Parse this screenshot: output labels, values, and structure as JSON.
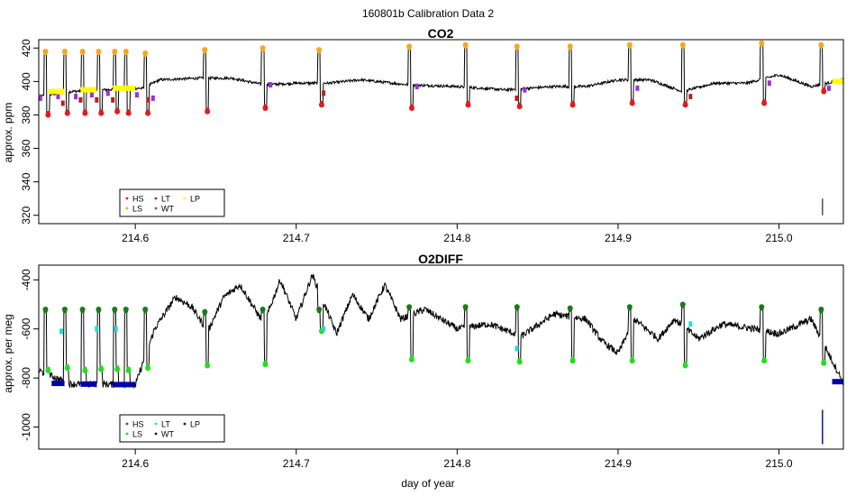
{
  "figure": {
    "suptitle": "160801b   Calibration Data 2",
    "xlabel": "day of year"
  },
  "colors": {
    "HS": "#e31a1c",
    "LS": "#f5a623",
    "LT": "#b22222",
    "WT": "#9b30d9",
    "LP": "#ffff00",
    "O2_HS": "#1a7a1a",
    "O2_LS": "#22dd22",
    "O2_LT": "#22dddd",
    "O2_WT": "#1a1a1a",
    "O2_LP": "#0000aa",
    "trace": "#000000"
  },
  "chart_data": [
    {
      "type": "line",
      "title": "CO2",
      "ylabel": "approx. ppm",
      "xlim": [
        214.54,
        215.04
      ],
      "ylim": [
        315,
        425
      ],
      "xticks": [
        214.6,
        214.7,
        214.8,
        214.9,
        215.0
      ],
      "xtick_labels": [
        "214.6",
        "214.7",
        "214.8",
        "214.9",
        "215.0"
      ],
      "yticks": [
        320,
        340,
        360,
        380,
        400,
        420
      ],
      "ytick_labels": [
        "320",
        "340",
        "360",
        "380",
        "400",
        "420"
      ],
      "legend": {
        "position": "bottom-left",
        "entries": [
          "HS",
          "LT",
          "LP",
          "LS",
          "WT"
        ]
      },
      "baseline": [
        [
          214.54,
          391
        ],
        [
          214.56,
          394
        ],
        [
          214.58,
          395
        ],
        [
          214.605,
          396
        ],
        [
          214.615,
          401
        ],
        [
          214.64,
          402
        ],
        [
          214.66,
          402
        ],
        [
          214.68,
          398
        ],
        [
          214.7,
          399
        ],
        [
          214.72,
          399
        ],
        [
          214.74,
          401
        ],
        [
          214.77,
          398
        ],
        [
          214.8,
          397
        ],
        [
          214.83,
          395
        ],
        [
          214.86,
          397
        ],
        [
          214.88,
          397
        ],
        [
          214.9,
          401
        ],
        [
          214.92,
          401
        ],
        [
          214.94,
          394
        ],
        [
          214.96,
          399
        ],
        [
          214.98,
          399
        ],
        [
          215.0,
          404
        ],
        [
          215.02,
          397
        ],
        [
          215.04,
          401
        ]
      ],
      "calibrations": [
        {
          "t": 214.545,
          "hi": 418,
          "lo": 380
        },
        {
          "t": 214.557,
          "hi": 418,
          "lo": 381
        },
        {
          "t": 214.568,
          "hi": 418,
          "lo": 381
        },
        {
          "t": 214.578,
          "hi": 418,
          "lo": 381
        },
        {
          "t": 214.588,
          "hi": 418,
          "lo": 382
        },
        {
          "t": 214.595,
          "hi": 418,
          "lo": 381
        },
        {
          "t": 214.607,
          "hi": 417,
          "lo": 381
        },
        {
          "t": 214.644,
          "hi": 419,
          "lo": 382
        },
        {
          "t": 214.68,
          "hi": 420,
          "lo": 384
        },
        {
          "t": 214.715,
          "hi": 419,
          "lo": 386
        },
        {
          "t": 214.771,
          "hi": 421,
          "lo": 384
        },
        {
          "t": 214.806,
          "hi": 422,
          "lo": 386
        },
        {
          "t": 214.838,
          "hi": 421,
          "lo": 385
        },
        {
          "t": 214.871,
          "hi": 421,
          "lo": 386
        },
        {
          "t": 214.908,
          "hi": 422,
          "lo": 387
        },
        {
          "t": 214.941,
          "hi": 422,
          "lo": 386
        },
        {
          "t": 214.99,
          "hi": 423,
          "lo": 387
        },
        {
          "t": 215.027,
          "hi": 422,
          "lo": 394
        }
      ],
      "wt_points": [
        [
          214.541,
          390
        ],
        [
          214.552,
          391
        ],
        [
          214.563,
          391
        ],
        [
          214.573,
          392
        ],
        [
          214.583,
          393
        ],
        [
          214.601,
          392
        ],
        [
          214.611,
          390
        ],
        [
          214.684,
          398
        ],
        [
          214.775,
          397
        ],
        [
          214.842,
          395
        ],
        [
          214.912,
          396
        ],
        [
          214.994,
          399
        ],
        [
          215.031,
          396
        ]
      ],
      "lt_points": [
        [
          214.555,
          387
        ],
        [
          214.566,
          389
        ],
        [
          214.576,
          389
        ],
        [
          214.586,
          389
        ],
        [
          214.608,
          389
        ],
        [
          214.717,
          393
        ],
        [
          214.837,
          390
        ],
        [
          214.945,
          391
        ]
      ],
      "lp_segments": [
        [
          214.546,
          214.556,
          394
        ],
        [
          214.566,
          214.576,
          395
        ],
        [
          214.586,
          214.6,
          396
        ],
        [
          215.033,
          215.04,
          400
        ]
      ],
      "outlier": {
        "t": 215.027,
        "from": 320,
        "to": 330
      }
    },
    {
      "type": "line",
      "title": "O2DIFF",
      "ylabel": "approx. per meg",
      "xlim": [
        214.54,
        215.04
      ],
      "ylim": [
        -1090,
        -340
      ],
      "xticks": [
        214.6,
        214.7,
        214.8,
        214.9,
        215.0
      ],
      "xtick_labels": [
        "214.6",
        "214.7",
        "214.8",
        "214.9",
        "215.0"
      ],
      "yticks": [
        -1000,
        -800,
        -600,
        -400
      ],
      "ytick_labels": [
        "-1000",
        "-800",
        "-600",
        "-400"
      ],
      "legend": {
        "position": "bottom-left",
        "entries": [
          "HS",
          "LT",
          "LP",
          "LS",
          "WT"
        ]
      },
      "baseline": [
        [
          214.54,
          -770
        ],
        [
          214.56,
          -825
        ],
        [
          214.58,
          -825
        ],
        [
          214.6,
          -830
        ],
        [
          214.612,
          -600
        ],
        [
          214.625,
          -470
        ],
        [
          214.635,
          -510
        ],
        [
          214.645,
          -610
        ],
        [
          214.655,
          -470
        ],
        [
          214.665,
          -420
        ],
        [
          214.68,
          -580
        ],
        [
          214.69,
          -400
        ],
        [
          214.7,
          -560
        ],
        [
          214.71,
          -380
        ],
        [
          214.725,
          -620
        ],
        [
          214.735,
          -460
        ],
        [
          214.745,
          -560
        ],
        [
          214.755,
          -420
        ],
        [
          214.765,
          -560
        ],
        [
          214.78,
          -520
        ],
        [
          214.8,
          -600
        ],
        [
          214.82,
          -580
        ],
        [
          214.84,
          -630
        ],
        [
          214.86,
          -540
        ],
        [
          214.88,
          -560
        ],
        [
          214.89,
          -650
        ],
        [
          214.9,
          -700
        ],
        [
          214.91,
          -560
        ],
        [
          214.925,
          -640
        ],
        [
          214.935,
          -560
        ],
        [
          214.95,
          -640
        ],
        [
          214.965,
          -580
        ],
        [
          214.985,
          -600
        ],
        [
          215.0,
          -620
        ],
        [
          215.02,
          -560
        ],
        [
          215.04,
          -820
        ]
      ],
      "calibrations": [
        {
          "t": 214.545,
          "hi": -520,
          "lo": -770
        },
        {
          "t": 214.557,
          "hi": -520,
          "lo": -760
        },
        {
          "t": 214.568,
          "hi": -520,
          "lo": -770
        },
        {
          "t": 214.578,
          "hi": -520,
          "lo": -765
        },
        {
          "t": 214.588,
          "hi": -520,
          "lo": -765
        },
        {
          "t": 214.595,
          "hi": -520,
          "lo": -770
        },
        {
          "t": 214.607,
          "hi": -520,
          "lo": -760
        },
        {
          "t": 214.644,
          "hi": -530,
          "lo": -750
        },
        {
          "t": 214.68,
          "hi": -520,
          "lo": -745
        },
        {
          "t": 214.715,
          "hi": -520,
          "lo": -610
        },
        {
          "t": 214.771,
          "hi": -510,
          "lo": -725
        },
        {
          "t": 214.806,
          "hi": -510,
          "lo": -730
        },
        {
          "t": 214.838,
          "hi": -510,
          "lo": -735
        },
        {
          "t": 214.871,
          "hi": -515,
          "lo": -730
        },
        {
          "t": 214.908,
          "hi": -510,
          "lo": -730
        },
        {
          "t": 214.941,
          "hi": -500,
          "lo": -750
        },
        {
          "t": 214.99,
          "hi": -510,
          "lo": -730
        },
        {
          "t": 215.027,
          "hi": -520,
          "lo": -740
        }
      ],
      "lt_points": [
        [
          214.554,
          -610
        ],
        [
          214.576,
          -600
        ],
        [
          214.588,
          -600
        ],
        [
          214.717,
          -600
        ],
        [
          214.837,
          -680
        ],
        [
          214.945,
          -580
        ]
      ],
      "lp_segments": [
        [
          214.548,
          214.556,
          -822
        ],
        [
          214.566,
          214.576,
          -825
        ],
        [
          214.586,
          214.6,
          -827
        ],
        [
          215.033,
          215.04,
          -815
        ]
      ],
      "outlier": {
        "t": 215.027,
        "from": -1070,
        "to": -930
      }
    }
  ]
}
